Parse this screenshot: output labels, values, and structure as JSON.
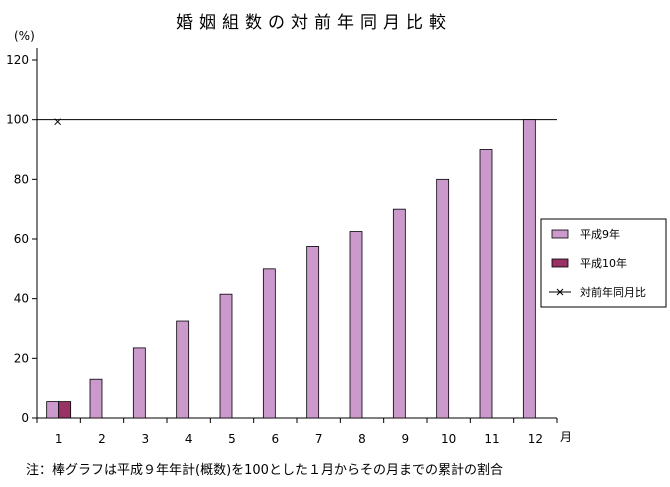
{
  "chart_data": {
    "type": "bar",
    "title": "婚姻組数の対前年同月比較",
    "ylabel": "(%)",
    "xlabel": "月",
    "categories": [
      "1",
      "2",
      "3",
      "4",
      "5",
      "6",
      "7",
      "8",
      "9",
      "10",
      "11",
      "12"
    ],
    "ylim": [
      0,
      120
    ],
    "yticks": [
      0,
      20,
      40,
      60,
      80,
      100,
      120
    ],
    "grid": false,
    "legend_position": "right",
    "series": [
      {
        "name": "平成9年",
        "type": "bar",
        "color": "#cc99cc",
        "values": [
          5.5,
          13,
          23.5,
          32.5,
          41.5,
          50,
          57.5,
          62.5,
          70,
          80,
          90,
          100
        ]
      },
      {
        "name": "平成10年",
        "type": "bar",
        "color": "#993366",
        "values": [
          5.5,
          null,
          null,
          null,
          null,
          null,
          null,
          null,
          null,
          null,
          null,
          null
        ]
      },
      {
        "name": "対前年同月比",
        "type": "line",
        "marker": "x",
        "color": "#000000",
        "values": [
          100,
          null,
          null,
          null,
          null,
          null,
          null,
          null,
          null,
          null,
          null,
          null
        ]
      }
    ],
    "reference_line": {
      "y": 100
    },
    "note": "注：棒グラフは平成９年年計(概数)を100とした１月からその月までの累計の割合"
  }
}
